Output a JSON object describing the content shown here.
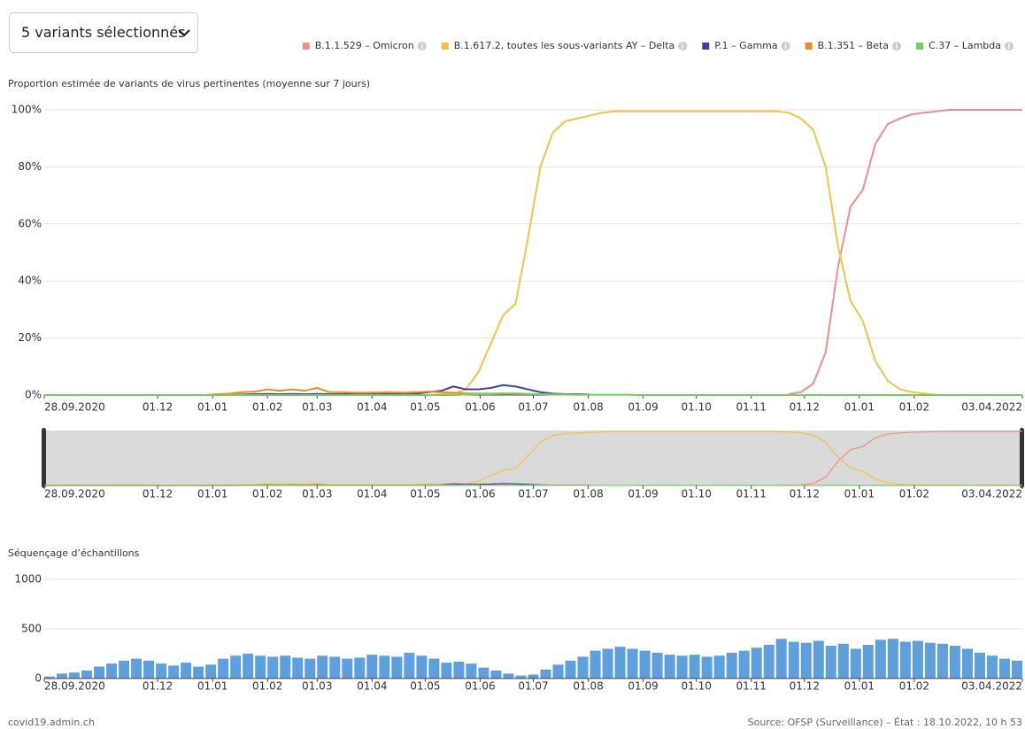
{
  "dropdown": "5 variants sélectionnés",
  "chart_data": [
    {
      "type": "line",
      "title": "Proportion estimée de variants de virus pertinentes (moyenne sur 7 jours)",
      "x": [
        "2020-09-28",
        "2020-10-05",
        "2020-10-12",
        "2020-10-19",
        "2020-10-26",
        "2020-11-02",
        "2020-11-09",
        "2020-11-16",
        "2020-11-23",
        "2020-11-30",
        "2020-12-07",
        "2020-12-14",
        "2020-12-21",
        "2020-12-28",
        "2021-01-04",
        "2021-01-11",
        "2021-01-18",
        "2021-01-25",
        "2021-02-01",
        "2021-02-08",
        "2021-02-15",
        "2021-02-22",
        "2021-03-01",
        "2021-03-08",
        "2021-03-15",
        "2021-03-22",
        "2021-03-29",
        "2021-04-05",
        "2021-04-12",
        "2021-04-19",
        "2021-04-26",
        "2021-05-03",
        "2021-05-10",
        "2021-05-17",
        "2021-05-24",
        "2021-05-31",
        "2021-06-07",
        "2021-06-14",
        "2021-06-21",
        "2021-06-28",
        "2021-07-05",
        "2021-07-12",
        "2021-07-19",
        "2021-07-26",
        "2021-08-02",
        "2021-08-09",
        "2021-08-16",
        "2021-08-23",
        "2021-08-30",
        "2021-09-06",
        "2021-09-13",
        "2021-09-20",
        "2021-09-27",
        "2021-10-04",
        "2021-10-11",
        "2021-10-18",
        "2021-10-25",
        "2021-11-01",
        "2021-11-08",
        "2021-11-15",
        "2021-11-22",
        "2021-11-29",
        "2021-12-06",
        "2021-12-13",
        "2021-12-20",
        "2021-12-27",
        "2022-01-03",
        "2022-01-10",
        "2022-01-17",
        "2022-01-24",
        "2022-01-31",
        "2022-02-07",
        "2022-02-14",
        "2022-02-21",
        "2022-02-28",
        "2022-03-07",
        "2022-03-14",
        "2022-03-21",
        "2022-03-28",
        "2022-04-03"
      ],
      "series": [
        {
          "name": "B.1.1.529 – Omicron",
          "color": "#f08c8c",
          "values": [
            null,
            null,
            null,
            null,
            null,
            null,
            null,
            null,
            null,
            null,
            null,
            null,
            null,
            null,
            null,
            null,
            null,
            null,
            null,
            null,
            null,
            null,
            null,
            null,
            null,
            null,
            null,
            null,
            null,
            null,
            null,
            null,
            null,
            null,
            null,
            null,
            null,
            null,
            null,
            null,
            null,
            null,
            null,
            null,
            null,
            null,
            null,
            null,
            null,
            null,
            null,
            null,
            null,
            null,
            null,
            null,
            null,
            null,
            null,
            null,
            0.3,
            1,
            4,
            15,
            45,
            66,
            72,
            88,
            95,
            97,
            98.5,
            99,
            99.5,
            100,
            100,
            100,
            100,
            100,
            100,
            100
          ]
        },
        {
          "name": "B.1.617.2, toutes les sous-variants AY – Delta",
          "color": "#f5c242",
          "values": [
            0,
            0,
            0,
            0,
            0,
            0,
            0,
            0,
            0,
            0,
            0,
            0,
            0,
            0,
            0,
            0,
            0,
            0,
            0,
            0,
            0,
            0,
            0,
            0,
            0,
            0,
            0,
            0,
            0,
            0,
            0,
            0,
            0.3,
            0.5,
            2,
            8,
            18,
            28,
            32,
            55,
            80,
            92,
            96,
            97,
            98,
            99,
            99.5,
            99.5,
            99.5,
            99.5,
            99.5,
            99.5,
            99.5,
            99.5,
            99.5,
            99.5,
            99.5,
            99.5,
            99.5,
            99.5,
            99,
            97,
            93,
            80,
            52,
            33,
            26,
            12,
            5,
            2,
            1,
            0.5,
            0,
            0,
            0,
            0,
            0,
            0,
            0,
            0
          ]
        },
        {
          "name": "P.1 – Gamma",
          "color": "#3f3fa8",
          "values": [
            0,
            0,
            0,
            0,
            0,
            0,
            0,
            0,
            0,
            0,
            0,
            0,
            0,
            0,
            0,
            0,
            0.2,
            0.3,
            0.4,
            0.3,
            0.4,
            0.3,
            0.4,
            0.3,
            0.3,
            0.4,
            0.3,
            0.4,
            0.3,
            0.4,
            0.5,
            1,
            1.5,
            3,
            2,
            2,
            2.5,
            3.5,
            3,
            2,
            1,
            0.5,
            0.3,
            0.3,
            0.2,
            null,
            null,
            null,
            null,
            null,
            null,
            null,
            null,
            null,
            null,
            null,
            null,
            null,
            null,
            null,
            null,
            null,
            null,
            null,
            null,
            null,
            null,
            null,
            null,
            null,
            null,
            null,
            null,
            null,
            null,
            null,
            null,
            null,
            null,
            null
          ]
        },
        {
          "name": "B.1.351 – Beta",
          "color": "#f28a1e",
          "values": [
            0,
            0,
            0,
            0,
            0,
            0,
            0,
            0,
            0,
            0,
            0,
            0,
            0,
            0,
            0.3,
            0.5,
            1,
            1.2,
            2,
            1.5,
            2,
            1.5,
            2.5,
            1,
            1,
            0.8,
            0.8,
            0.9,
            1,
            0.8,
            1,
            1.2,
            1,
            0.8,
            0.6,
            0.5,
            0.5,
            0.6,
            0.4,
            0.3,
            0.3,
            0.2,
            0.2,
            0.1,
            0.1,
            null,
            null,
            null,
            null,
            null,
            null,
            null,
            null,
            null,
            null,
            null,
            null,
            null,
            null,
            null,
            null,
            null,
            null,
            null,
            null,
            null,
            null,
            null,
            null,
            null,
            null,
            null,
            null,
            null,
            null,
            null,
            null,
            null,
            null,
            null
          ]
        },
        {
          "name": "C.37 – Lambda",
          "color": "#6cd35a",
          "values": [
            0,
            0,
            0,
            0,
            0,
            0,
            0,
            0,
            0,
            0,
            0,
            0,
            0,
            0,
            0,
            0,
            0,
            0,
            0,
            0,
            0,
            0,
            0,
            0,
            0,
            0,
            0,
            0,
            0,
            0,
            0,
            0,
            0,
            0,
            0.2,
            0.3,
            0.3,
            0.5,
            0.6,
            0.4,
            0.3,
            0.2,
            0.2,
            0.1,
            0.1,
            0.1,
            0.1,
            0.1,
            0,
            0,
            0,
            0,
            0,
            0,
            0,
            0,
            0,
            0,
            0,
            0,
            0,
            0,
            0,
            0,
            0,
            0,
            0,
            0,
            0,
            0,
            0,
            0,
            0,
            0,
            0,
            0,
            0,
            0,
            0,
            0
          ]
        }
      ],
      "xlim": [
        "2020-09-28",
        "2022-04-03"
      ],
      "xticks": [
        {
          "value": "2020-09-28",
          "label": "28.09.2020"
        },
        {
          "value": "2020-12-01",
          "label": "01.12"
        },
        {
          "value": "2021-01-01",
          "label": "01.01"
        },
        {
          "value": "2021-02-01",
          "label": "01.02"
        },
        {
          "value": "2021-03-01",
          "label": "01.03"
        },
        {
          "value": "2021-04-01",
          "label": "01.04"
        },
        {
          "value": "2021-05-01",
          "label": "01.05"
        },
        {
          "value": "2021-06-01",
          "label": "01.06"
        },
        {
          "value": "2021-07-01",
          "label": "01.07"
        },
        {
          "value": "2021-08-01",
          "label": "01.08"
        },
        {
          "value": "2021-09-01",
          "label": "01.09"
        },
        {
          "value": "2021-10-01",
          "label": "01.10"
        },
        {
          "value": "2021-11-01",
          "label": "01.11"
        },
        {
          "value": "2021-12-01",
          "label": "01.12"
        },
        {
          "value": "2022-01-01",
          "label": "01.01"
        },
        {
          "value": "2022-02-01",
          "label": "01.02"
        },
        {
          "value": "2022-04-03",
          "label": "03.04.2022"
        }
      ],
      "ylim": [
        0,
        100
      ],
      "yticks": [
        {
          "value": 0,
          "label": "0%"
        },
        {
          "value": 20,
          "label": "20%"
        },
        {
          "value": 40,
          "label": "40%"
        },
        {
          "value": 60,
          "label": "60%"
        },
        {
          "value": 80,
          "label": "80%"
        },
        {
          "value": 100,
          "label": "100%"
        }
      ],
      "grid": true
    },
    {
      "type": "bar",
      "title": "Séquençage d’échantillons",
      "x": [
        "2020-09-28",
        "2020-10-05",
        "2020-10-12",
        "2020-10-19",
        "2020-10-26",
        "2020-11-02",
        "2020-11-09",
        "2020-11-16",
        "2020-11-23",
        "2020-11-30",
        "2020-12-07",
        "2020-12-14",
        "2020-12-21",
        "2020-12-28",
        "2021-01-04",
        "2021-01-11",
        "2021-01-18",
        "2021-01-25",
        "2021-02-01",
        "2021-02-08",
        "2021-02-15",
        "2021-02-22",
        "2021-03-01",
        "2021-03-08",
        "2021-03-15",
        "2021-03-22",
        "2021-03-29",
        "2021-04-05",
        "2021-04-12",
        "2021-04-19",
        "2021-04-26",
        "2021-05-03",
        "2021-05-10",
        "2021-05-17",
        "2021-05-24",
        "2021-05-31",
        "2021-06-07",
        "2021-06-14",
        "2021-06-21",
        "2021-06-28",
        "2021-07-05",
        "2021-07-12",
        "2021-07-19",
        "2021-07-26",
        "2021-08-02",
        "2021-08-09",
        "2021-08-16",
        "2021-08-23",
        "2021-08-30",
        "2021-09-06",
        "2021-09-13",
        "2021-09-20",
        "2021-09-27",
        "2021-10-04",
        "2021-10-11",
        "2021-10-18",
        "2021-10-25",
        "2021-11-01",
        "2021-11-08",
        "2021-11-15",
        "2021-11-22",
        "2021-11-29",
        "2021-12-06",
        "2021-12-13",
        "2021-12-20",
        "2021-12-27",
        "2022-01-03",
        "2022-01-10",
        "2022-01-17",
        "2022-01-24",
        "2022-01-31",
        "2022-02-07",
        "2022-02-14",
        "2022-02-21",
        "2022-02-28",
        "2022-03-07",
        "2022-03-14",
        "2022-03-21",
        "2022-03-28",
        "2022-04-03"
      ],
      "values": [
        20,
        50,
        60,
        80,
        120,
        150,
        180,
        200,
        180,
        150,
        130,
        160,
        120,
        140,
        200,
        230,
        250,
        230,
        220,
        230,
        210,
        200,
        230,
        220,
        200,
        210,
        240,
        230,
        220,
        260,
        230,
        200,
        160,
        170,
        150,
        110,
        80,
        50,
        30,
        40,
        90,
        140,
        180,
        220,
        280,
        300,
        320,
        300,
        280,
        260,
        240,
        230,
        240,
        220,
        230,
        260,
        280,
        310,
        340,
        400,
        370,
        360,
        380,
        330,
        350,
        300,
        340,
        390,
        400,
        370,
        380,
        360,
        350,
        330,
        300,
        260,
        230,
        200,
        180,
        150
      ],
      "color": "#5e9fde",
      "xlim": [
        "2020-09-28",
        "2022-04-03"
      ],
      "xticks": [
        {
          "value": "2020-09-28",
          "label": "28.09.2020"
        },
        {
          "value": "2020-12-01",
          "label": "01.12"
        },
        {
          "value": "2021-01-01",
          "label": "01.01"
        },
        {
          "value": "2021-02-01",
          "label": "01.02"
        },
        {
          "value": "2021-03-01",
          "label": "01.03"
        },
        {
          "value": "2021-04-01",
          "label": "01.04"
        },
        {
          "value": "2021-05-01",
          "label": "01.05"
        },
        {
          "value": "2021-06-01",
          "label": "01.06"
        },
        {
          "value": "2021-07-01",
          "label": "01.07"
        },
        {
          "value": "2021-08-01",
          "label": "01.08"
        },
        {
          "value": "2021-09-01",
          "label": "01.09"
        },
        {
          "value": "2021-10-01",
          "label": "01.10"
        },
        {
          "value": "2021-11-01",
          "label": "01.11"
        },
        {
          "value": "2021-12-01",
          "label": "01.12"
        },
        {
          "value": "2022-01-01",
          "label": "01.01"
        },
        {
          "value": "2022-02-01",
          "label": "01.02"
        },
        {
          "value": "2022-04-03",
          "label": "03.04.2022"
        }
      ],
      "ylim": [
        0,
        1000
      ],
      "yticks": [
        0,
        500,
        1000
      ],
      "grid": true
    }
  ],
  "footer": {
    "left": "covid19.admin.ch",
    "right": "Source: OFSP (Surveillance) – État : 18.10.2022, 10 h 53"
  }
}
